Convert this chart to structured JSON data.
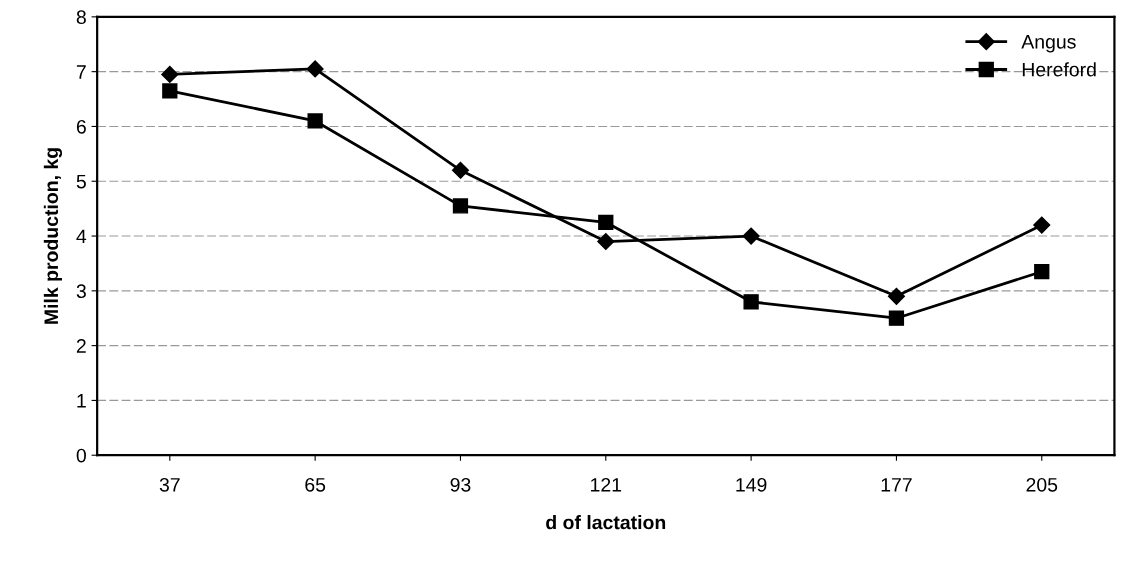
{
  "chart_data": {
    "type": "line",
    "xlabel": "d of lactation",
    "ylabel": "Milk production, kg",
    "categories": [
      "37",
      "65",
      "93",
      "121",
      "149",
      "177",
      "205"
    ],
    "series": [
      {
        "name": "Angus",
        "color": "#000000",
        "marker": "diamond",
        "values": [
          6.95,
          7.05,
          5.2,
          3.9,
          4.0,
          2.9,
          4.2
        ]
      },
      {
        "name": "Hereford",
        "color": "#000000",
        "marker": "square",
        "values": [
          6.65,
          6.1,
          4.55,
          4.25,
          2.8,
          2.5,
          3.35
        ]
      }
    ],
    "ylim": [
      0,
      8
    ],
    "yticks": [
      0,
      1,
      2,
      3,
      4,
      5,
      6,
      7,
      8
    ],
    "grid": "y",
    "legend": "top right",
    "line_style": "solid"
  }
}
